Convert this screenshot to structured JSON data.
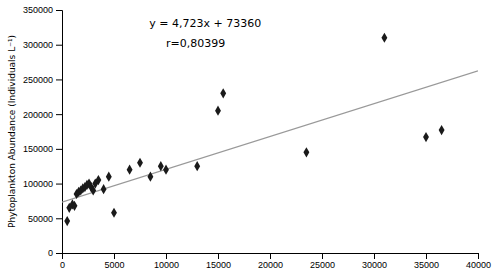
{
  "chart_data": {
    "type": "scatter",
    "y_label": "Phytoplankton Abundance (Individuals L⁻¹)",
    "series": [
      {
        "type": "scatter",
        "marker": "diamond",
        "color": "#1a1a1a",
        "x": [
          500,
          700,
          1000,
          1200,
          1400,
          1600,
          1800,
          2000,
          2200,
          2400,
          2600,
          2800,
          3000,
          3200,
          3500,
          4000,
          4500,
          5000,
          6500,
          7500,
          8500,
          9500,
          10000,
          13000,
          15000,
          15500,
          23500,
          31000,
          35000,
          36500
        ],
        "values": [
          46000,
          65000,
          70000,
          68000,
          85000,
          88000,
          90000,
          93000,
          95000,
          98000,
          100000,
          95000,
          90000,
          100000,
          105000,
          92000,
          110000,
          58000,
          120000,
          130000,
          110000,
          125000,
          120000,
          125000,
          205000,
          230000,
          145000,
          310000,
          167000,
          177000
        ]
      },
      {
        "type": "line",
        "line_style": "solid",
        "color": "#999999",
        "x": [
          0,
          40000
        ],
        "values": [
          73360,
          262280
        ]
      }
    ],
    "annotations": [
      "y = 4,723x + 73360",
      "r=0,80399"
    ],
    "xlim": [
      0,
      40000
    ],
    "ylim": [
      0,
      350000
    ],
    "xticks": [
      0,
      5000,
      10000,
      15000,
      20000,
      25000,
      30000,
      35000,
      40000
    ],
    "yticks": [
      0,
      50000,
      100000,
      150000,
      200000,
      250000,
      300000,
      350000
    ],
    "grid": false
  }
}
